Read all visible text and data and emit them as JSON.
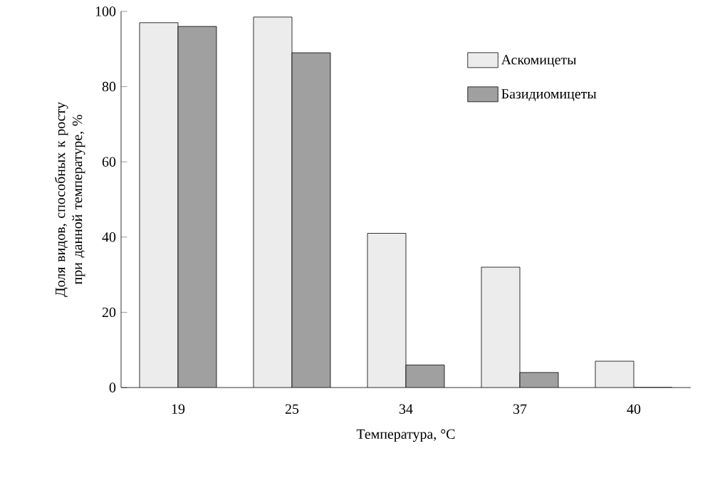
{
  "chart_data": {
    "type": "bar",
    "xlabel": "Температура, °C",
    "ylabel": "Доля видов, способных к росту при данной температуре, %",
    "categories": [
      "19",
      "25",
      "34",
      "37",
      "40"
    ],
    "series": [
      {
        "name": "Аскомицеты",
        "color": "#ececec",
        "values": [
          97,
          98.5,
          41,
          32,
          7
        ]
      },
      {
        "name": "Базидиомицеты",
        "color": "#a0a0a0",
        "values": [
          96,
          89,
          6,
          4,
          0
        ]
      }
    ],
    "ylim": [
      0,
      100
    ],
    "yticks": [
      0,
      20,
      40,
      60,
      80,
      100
    ],
    "legend": "top right"
  }
}
